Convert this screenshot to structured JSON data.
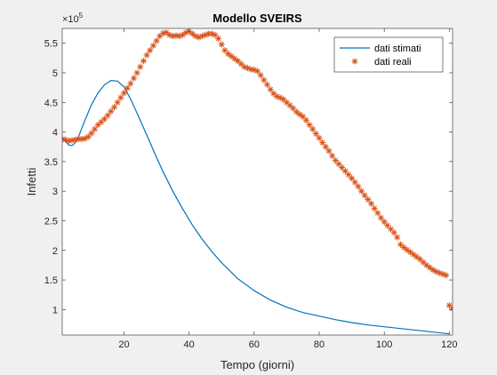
{
  "chart_data": {
    "type": "line",
    "title": "Modello SVEIRS",
    "xlabel": "Tempo (giorni)",
    "ylabel": "Infetti",
    "y_exponent_label": "×10",
    "y_exponent": "5",
    "xlim": [
      1,
      121
    ],
    "ylim": [
      0.57,
      5.75
    ],
    "y_display_scale": 100000,
    "x_ticks": [
      20,
      40,
      60,
      80,
      100,
      120
    ],
    "y_ticks": [
      1,
      1.5,
      2,
      2.5,
      3,
      3.5,
      4,
      4.5,
      5,
      5.5
    ],
    "x_tick_labels": [
      "20",
      "40",
      "60",
      "80",
      "100",
      "120"
    ],
    "y_tick_labels": [
      "1",
      "1.5",
      "2",
      "2.5",
      "3",
      "3.5",
      "4",
      "4.5",
      "5",
      "5.5"
    ],
    "grid": false,
    "legend_position": "top-right",
    "colors": {
      "dati_stimati": "#0072bd",
      "dati_reali": "#d95319",
      "figure_bg": "#f0f0f0",
      "axes_bg": "#ffffff"
    },
    "series": [
      {
        "name": "dati stimati",
        "style": "line",
        "x": [
          1,
          2,
          3,
          4,
          5,
          6,
          8,
          10,
          12,
          14,
          16,
          18,
          20,
          22,
          24,
          26,
          28,
          30,
          32,
          35,
          38,
          41,
          44,
          47,
          50,
          55,
          60,
          65,
          70,
          75,
          80,
          85,
          90,
          95,
          100,
          105,
          110,
          115,
          120
        ],
        "y": [
          3.9,
          3.84,
          3.78,
          3.77,
          3.82,
          3.92,
          4.2,
          4.46,
          4.66,
          4.8,
          4.87,
          4.86,
          4.76,
          4.56,
          4.32,
          4.07,
          3.82,
          3.57,
          3.33,
          3.0,
          2.7,
          2.43,
          2.19,
          1.98,
          1.79,
          1.52,
          1.32,
          1.16,
          1.04,
          0.95,
          0.89,
          0.83,
          0.78,
          0.74,
          0.71,
          0.68,
          0.65,
          0.62,
          0.59
        ]
      },
      {
        "name": "dati reali",
        "style": "star-markers",
        "x": [
          1,
          2,
          3,
          4,
          5,
          6,
          7,
          8,
          9,
          10,
          11,
          12,
          13,
          14,
          15,
          16,
          17,
          18,
          19,
          20,
          21,
          22,
          23,
          24,
          25,
          26,
          27,
          28,
          29,
          30,
          31,
          32,
          33,
          34,
          35,
          36,
          37,
          38,
          39,
          40,
          41,
          42,
          43,
          44,
          45,
          46,
          47,
          48,
          49,
          50,
          51,
          52,
          53,
          54,
          55,
          56,
          57,
          58,
          59,
          60,
          61,
          62,
          63,
          64,
          65,
          66,
          67,
          68,
          69,
          70,
          71,
          72,
          73,
          74,
          75,
          76,
          77,
          78,
          79,
          80,
          81,
          82,
          83,
          84,
          85,
          86,
          87,
          88,
          89,
          90,
          91,
          92,
          93,
          94,
          95,
          96,
          97,
          98,
          99,
          100,
          101,
          102,
          103,
          104,
          105,
          106,
          107,
          108,
          109,
          110,
          111,
          112,
          113,
          114,
          115,
          116,
          117,
          118,
          119,
          120,
          121
        ],
        "y": [
          3.88,
          3.87,
          3.85,
          3.86,
          3.87,
          3.88,
          3.88,
          3.89,
          3.92,
          3.98,
          4.05,
          4.12,
          4.17,
          4.22,
          4.28,
          4.35,
          4.42,
          4.5,
          4.58,
          4.66,
          4.74,
          4.82,
          4.91,
          5.0,
          5.1,
          5.2,
          5.3,
          5.38,
          5.46,
          5.54,
          5.62,
          5.67,
          5.68,
          5.64,
          5.62,
          5.63,
          5.62,
          5.64,
          5.68,
          5.7,
          5.66,
          5.62,
          5.6,
          5.62,
          5.64,
          5.66,
          5.66,
          5.64,
          5.58,
          5.48,
          5.38,
          5.32,
          5.28,
          5.24,
          5.2,
          5.15,
          5.1,
          5.08,
          5.06,
          5.05,
          5.03,
          4.96,
          4.88,
          4.8,
          4.72,
          4.65,
          4.6,
          4.58,
          4.55,
          4.5,
          4.45,
          4.4,
          4.34,
          4.3,
          4.26,
          4.2,
          4.12,
          4.05,
          3.97,
          3.9,
          3.82,
          3.75,
          3.68,
          3.6,
          3.52,
          3.46,
          3.4,
          3.34,
          3.28,
          3.22,
          3.15,
          3.08,
          3.0,
          2.93,
          2.86,
          2.79,
          2.71,
          2.63,
          2.55,
          2.48,
          2.42,
          2.36,
          2.3,
          2.22,
          2.1,
          2.05,
          2.01,
          1.97,
          1.93,
          1.89,
          1.85,
          1.8,
          1.75,
          1.71,
          1.67,
          1.64,
          1.62,
          1.6,
          1.58,
          1.07,
          1.02
        ]
      }
    ]
  }
}
